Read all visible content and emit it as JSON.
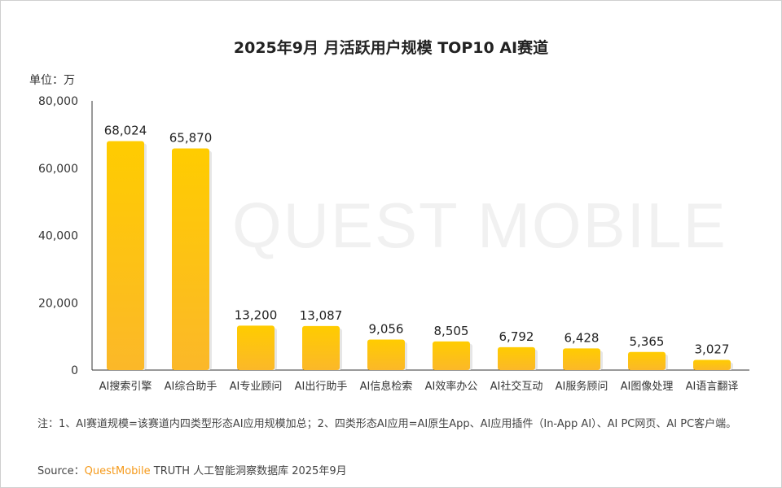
{
  "chart_data": {
    "type": "bar",
    "title": "2025年9月 月活跃用户规模 TOP10 AI赛道",
    "unit_label": "单位：万",
    "categories": [
      "AI搜索引擎",
      "AI综合助手",
      "AI专业顾问",
      "AI出行助手",
      "AI信息检索",
      "AI效率办公",
      "AI社交互动",
      "AI服务顾问",
      "AI图像处理",
      "AI语言翻译"
    ],
    "values": [
      68024,
      65870,
      13200,
      13087,
      9056,
      8505,
      6792,
      6428,
      5365,
      3027
    ],
    "data_labels": [
      "68,024",
      "65,870",
      "13,200",
      "13,087",
      "9,056",
      "8,505",
      "6,792",
      "6,428",
      "5,365",
      "3,027"
    ],
    "yticks": [
      "0",
      "20,000",
      "40,000",
      "60,000",
      "80,000"
    ],
    "ylim": [
      0,
      80000
    ],
    "grid": false,
    "colors": {
      "bar_top": "#FFCC00",
      "bar_bottom": "#FBB829"
    }
  },
  "watermark": "QUEST MOBILE",
  "note": "注：1、AI赛道规模=该赛道内四类型形态AI应用规模加总；2、四类形态AI应用=AI原生App、AI应用插件（In-App AI）、AI PC网页、AI PC客户端。",
  "source": {
    "label": "Source：",
    "brand": "QuestMobile",
    "text": " TRUTH 人工智能洞察数据库 2025年9月"
  }
}
